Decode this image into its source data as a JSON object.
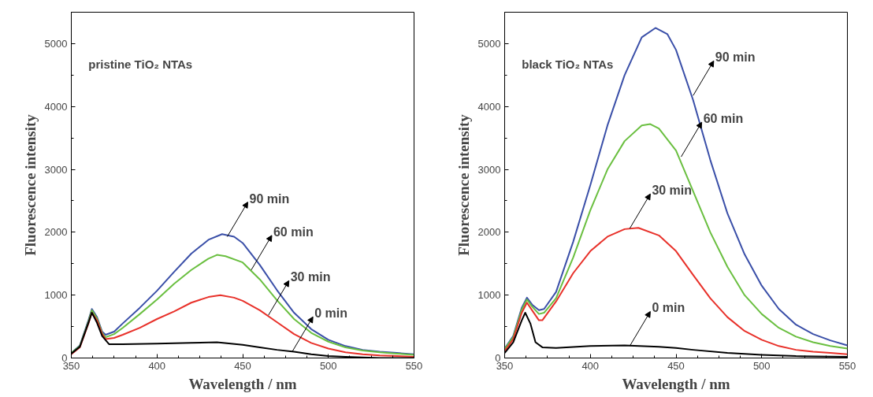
{
  "chart_data": [
    {
      "type": "line",
      "title": "pristine TiO₂ NTAs",
      "xlabel": "Wavelength / nm",
      "ylabel": "Fluorescence intensity",
      "xlim": [
        350,
        550
      ],
      "ylim": [
        0,
        5500
      ],
      "xticks": [
        350,
        400,
        450,
        500,
        550
      ],
      "yticks": [
        0,
        1000,
        2000,
        3000,
        4000,
        5000
      ],
      "line_style": "solid",
      "series": [
        {
          "color": "#3a4fa8",
          "x": [
            350,
            355,
            360,
            362,
            365,
            368,
            370,
            375,
            380,
            390,
            400,
            410,
            420,
            430,
            438,
            445,
            450,
            460,
            470,
            480,
            490,
            500,
            510,
            520,
            530,
            540,
            550
          ],
          "values": [
            80,
            200,
            600,
            780,
            650,
            420,
            370,
            420,
            550,
            800,
            1070,
            1370,
            1660,
            1880,
            1970,
            1930,
            1830,
            1480,
            1080,
            720,
            460,
            290,
            190,
            130,
            100,
            80,
            60
          ]
        },
        {
          "color": "#6abf40",
          "x": [
            350,
            355,
            360,
            362,
            365,
            368,
            370,
            375,
            380,
            390,
            400,
            410,
            420,
            430,
            435,
            440,
            450,
            460,
            470,
            480,
            490,
            500,
            510,
            520,
            530,
            540,
            550
          ],
          "values": [
            80,
            190,
            580,
            760,
            630,
            400,
            330,
            380,
            480,
            700,
            930,
            1180,
            1400,
            1580,
            1640,
            1620,
            1520,
            1250,
            920,
            620,
            400,
            260,
            170,
            120,
            90,
            70,
            50
          ]
        },
        {
          "color": "#e8312a",
          "x": [
            350,
            355,
            360,
            362,
            365,
            368,
            370,
            375,
            380,
            390,
            400,
            410,
            420,
            430,
            437,
            445,
            450,
            460,
            470,
            480,
            490,
            500,
            510,
            520,
            530,
            540,
            550
          ],
          "values": [
            60,
            170,
            550,
            720,
            600,
            380,
            300,
            320,
            370,
            480,
            620,
            740,
            880,
            970,
            1000,
            960,
            910,
            760,
            570,
            380,
            240,
            150,
            90,
            60,
            40,
            30,
            20
          ]
        },
        {
          "color": "#000000",
          "x": [
            350,
            355,
            360,
            362,
            365,
            368,
            372,
            380,
            400,
            420,
            435,
            450,
            460,
            470,
            480,
            490,
            500,
            510,
            520,
            530,
            550
          ],
          "values": [
            70,
            180,
            560,
            720,
            560,
            350,
            220,
            220,
            230,
            240,
            250,
            210,
            170,
            130,
            100,
            60,
            30,
            20,
            10,
            0,
            0
          ]
        }
      ],
      "annotations": [
        {
          "text": "90 min",
          "x": 441,
          "y": 1930
        },
        {
          "text": "60 min",
          "x": 455,
          "y": 1400
        },
        {
          "text": "30 min",
          "x": 465,
          "y": 680
        },
        {
          "text": "0 min",
          "x": 479,
          "y": 105
        }
      ]
    },
    {
      "type": "line",
      "title": "black TiO₂ NTAs",
      "xlabel": "Wavelength / nm",
      "ylabel": "Fluorescence intensity",
      "xlim": [
        350,
        550
      ],
      "ylim": [
        0,
        5500
      ],
      "xticks": [
        350,
        400,
        450,
        500,
        550
      ],
      "yticks": [
        0,
        1000,
        2000,
        3000,
        4000,
        5000
      ],
      "line_style": "solid",
      "series": [
        {
          "color": "#3a4fa8",
          "x": [
            350,
            355,
            360,
            363,
            366,
            370,
            373,
            380,
            390,
            400,
            410,
            420,
            430,
            438,
            445,
            450,
            460,
            470,
            480,
            490,
            500,
            510,
            520,
            530,
            540,
            550
          ],
          "values": [
            150,
            350,
            800,
            960,
            850,
            760,
            780,
            1050,
            1850,
            2750,
            3700,
            4500,
            5100,
            5250,
            5150,
            4900,
            4100,
            3150,
            2300,
            1650,
            1150,
            780,
            530,
            380,
            280,
            200
          ]
        },
        {
          "color": "#6abf40",
          "x": [
            350,
            355,
            360,
            363,
            366,
            370,
            373,
            380,
            390,
            400,
            410,
            420,
            430,
            435,
            440,
            450,
            460,
            470,
            480,
            490,
            500,
            510,
            520,
            530,
            540,
            550
          ],
          "values": [
            140,
            330,
            770,
            930,
            820,
            700,
            720,
            950,
            1600,
            2350,
            3000,
            3450,
            3700,
            3720,
            3650,
            3300,
            2650,
            2000,
            1450,
            1000,
            700,
            480,
            340,
            250,
            190,
            150
          ]
        },
        {
          "color": "#e8312a",
          "x": [
            350,
            355,
            360,
            363,
            366,
            370,
            372,
            380,
            390,
            400,
            410,
            420,
            428,
            440,
            450,
            460,
            470,
            480,
            490,
            500,
            510,
            520,
            530,
            540,
            550
          ],
          "values": [
            110,
            300,
            720,
            880,
            760,
            600,
            600,
            900,
            1350,
            1700,
            1930,
            2050,
            2070,
            1950,
            1700,
            1320,
            950,
            650,
            430,
            290,
            190,
            130,
            100,
            80,
            60
          ]
        },
        {
          "color": "#000000",
          "x": [
            350,
            355,
            360,
            362,
            365,
            368,
            372,
            380,
            400,
            420,
            440,
            450,
            460,
            480,
            500,
            520,
            550
          ],
          "values": [
            80,
            250,
            600,
            720,
            550,
            250,
            170,
            160,
            190,
            200,
            180,
            160,
            130,
            80,
            50,
            30,
            20
          ]
        }
      ],
      "annotations": [
        {
          "text": "90 min",
          "x": 460,
          "y": 4175
        },
        {
          "text": "60 min",
          "x": 453,
          "y": 3200
        },
        {
          "text": "30 min",
          "x": 423,
          "y": 2060
        },
        {
          "text": "0 min",
          "x": 423,
          "y": 190
        }
      ]
    }
  ]
}
